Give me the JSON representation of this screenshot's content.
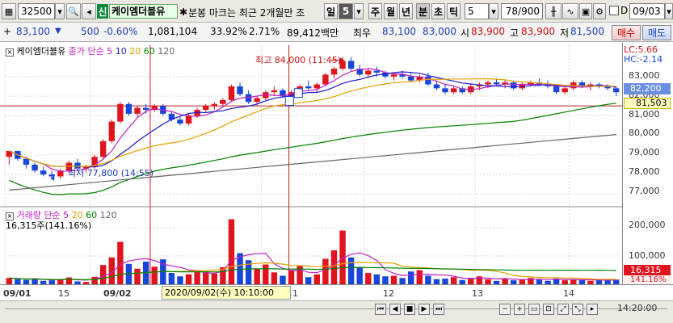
{
  "toolbar": {
    "code": "32500",
    "new_badge": "신",
    "stock_name": "케이엠더블유",
    "notice": "분봉 마크는 최근 2개월만 조",
    "timeframes": [
      "일",
      "5",
      "주",
      "월",
      "년",
      "분",
      "초",
      "틱"
    ],
    "interval_value": "5",
    "count": "78/900",
    "d_label": "D",
    "date": "09/03"
  },
  "quote": {
    "price": "83,100",
    "change": "500",
    "change_pct": "-0.60%",
    "volume": "1,081,104",
    "vol_ratio": "33.92%",
    "turnover": "2.71%",
    "amount": "89,412백만",
    "best_label": "최우",
    "best_ask": "83,100",
    "best_bid": "83,000",
    "open_label": "시",
    "open": "83,900",
    "high_label": "고",
    "high": "83,900",
    "low_label": "저",
    "low": "81,500",
    "buy_btn": "매수",
    "sell_btn": "매도"
  },
  "price_panel": {
    "name": "케이엠더블유",
    "ma_label": "종가 단순",
    "ma_periods": [
      "5",
      "10",
      "20",
      "60",
      "120"
    ],
    "lc": "LC:5.66",
    "hc": "HC:-2.14",
    "high_note": "최고 84,000 (11:45)",
    "low_note": "최저 77,800 (14:55)",
    "current_tag": "82,200",
    "ref_tag": "81,503",
    "ticks": [
      "83,000",
      "82,000",
      "81,000",
      "80,000",
      "79,000",
      "78,000",
      "77,000"
    ]
  },
  "volume_panel": {
    "label": "거래량 단순",
    "ma_periods": [
      "5",
      "20",
      "60",
      "120"
    ],
    "current": "16,315주(141.16%)",
    "current_tag": "16,315",
    "pct_tag": "141.16%",
    "ticks": [
      "200,000",
      "100,000"
    ]
  },
  "xaxis": {
    "labels": [
      "09/01",
      "15",
      "09/02",
      "11",
      "12",
      "13",
      "14"
    ],
    "crosshair_label": "2020/09/02(수) 10:10:00",
    "end_time": "14:20:00"
  },
  "colors": {
    "up": "#e0141e",
    "down": "#1746d8",
    "ma5": "#c020c0",
    "ma10": "#1a1acc",
    "ma20": "#e8a000",
    "ma60": "#008000",
    "ma120": "#666666"
  },
  "chart_data": {
    "type": "candlestick",
    "yrange": [
      76600,
      84600
    ],
    "candles": [
      [
        78900,
        79200,
        78500,
        79200
      ],
      [
        79200,
        79200,
        78700,
        78800
      ],
      [
        78800,
        78900,
        78300,
        78500
      ],
      [
        78500,
        78600,
        78100,
        78200
      ],
      [
        78200,
        78400,
        77900,
        78000
      ],
      [
        78000,
        78200,
        77800,
        77900
      ],
      [
        77900,
        78300,
        77800,
        78200
      ],
      [
        78200,
        78700,
        78100,
        78600
      ],
      [
        78600,
        78800,
        78200,
        78300
      ],
      [
        78300,
        78500,
        78100,
        78400
      ],
      [
        78400,
        79000,
        78300,
        78900
      ],
      [
        78900,
        79800,
        78800,
        79700
      ],
      [
        79700,
        80800,
        79600,
        80700
      ],
      [
        80700,
        81700,
        80600,
        81600
      ],
      [
        81600,
        81700,
        81000,
        81100
      ],
      [
        81100,
        81500,
        80900,
        81400
      ],
      [
        81400,
        81600,
        81100,
        81300
      ],
      [
        81300,
        81600,
        81200,
        81500
      ],
      [
        81500,
        81600,
        81000,
        81100
      ],
      [
        81100,
        81200,
        80700,
        80800
      ],
      [
        80800,
        81000,
        80500,
        80600
      ],
      [
        80600,
        81100,
        80500,
        81000
      ],
      [
        81000,
        81400,
        80900,
        81300
      ],
      [
        81300,
        81600,
        81200,
        81500
      ],
      [
        81500,
        81700,
        81300,
        81600
      ],
      [
        81600,
        81900,
        81500,
        81800
      ],
      [
        81800,
        82600,
        81700,
        82500
      ],
      [
        82500,
        82700,
        82000,
        82100
      ],
      [
        82100,
        82300,
        81600,
        81700
      ],
      [
        81700,
        82000,
        81500,
        81900
      ],
      [
        81900,
        82300,
        81800,
        82200
      ],
      [
        82200,
        82500,
        82000,
        82300
      ],
      [
        82300,
        82400,
        81900,
        82000
      ],
      [
        82000,
        82300,
        81900,
        82200
      ],
      [
        82200,
        82600,
        82100,
        82500
      ],
      [
        82500,
        82800,
        82300,
        82400
      ],
      [
        82400,
        82700,
        82200,
        82600
      ],
      [
        82600,
        83200,
        82500,
        83100
      ],
      [
        83100,
        83500,
        82900,
        83400
      ],
      [
        83400,
        84000,
        83300,
        83800
      ],
      [
        83800,
        84000,
        83300,
        83400
      ],
      [
        83400,
        83600,
        83000,
        83100
      ],
      [
        83100,
        83400,
        82900,
        83300
      ],
      [
        83300,
        83500,
        83000,
        83200
      ],
      [
        83200,
        83300,
        82900,
        83000
      ],
      [
        83000,
        83200,
        82800,
        83100
      ],
      [
        83100,
        83300,
        82900,
        83000
      ],
      [
        83000,
        83200,
        82700,
        82800
      ],
      [
        82800,
        83100,
        82700,
        83000
      ],
      [
        83000,
        83200,
        82500,
        82600
      ],
      [
        82600,
        82800,
        82300,
        82400
      ],
      [
        82400,
        82600,
        82100,
        82200
      ],
      [
        82200,
        82500,
        82100,
        82400
      ],
      [
        82400,
        82500,
        82100,
        82200
      ],
      [
        82200,
        82600,
        82100,
        82500
      ],
      [
        82500,
        82700,
        82300,
        82600
      ],
      [
        82600,
        82800,
        82400,
        82700
      ],
      [
        82700,
        82900,
        82500,
        82600
      ],
      [
        82600,
        82800,
        82400,
        82700
      ],
      [
        82700,
        82800,
        82300,
        82400
      ],
      [
        82400,
        82700,
        82300,
        82600
      ],
      [
        82600,
        82800,
        82500,
        82700
      ],
      [
        82700,
        82900,
        82500,
        82600
      ],
      [
        82600,
        82800,
        82400,
        82500
      ],
      [
        82500,
        82600,
        82100,
        82200
      ],
      [
        82200,
        82500,
        82100,
        82400
      ],
      [
        82400,
        82800,
        82300,
        82700
      ],
      [
        82700,
        82800,
        82400,
        82500
      ],
      [
        82500,
        82700,
        82300,
        82600
      ],
      [
        82600,
        82700,
        82400,
        82500
      ],
      [
        82500,
        82600,
        82300,
        82400
      ],
      [
        82400,
        82500,
        82000,
        82200
      ]
    ],
    "volumes": [
      22000,
      18000,
      15000,
      20000,
      12000,
      14000,
      18000,
      24000,
      10000,
      8000,
      26000,
      68000,
      95000,
      150000,
      72000,
      55000,
      80000,
      62000,
      88000,
      40000,
      28000,
      35000,
      50000,
      45000,
      38000,
      60000,
      230000,
      110000,
      85000,
      55000,
      70000,
      42000,
      30000,
      48000,
      66000,
      25000,
      35000,
      90000,
      120000,
      190000,
      95000,
      60000,
      40000,
      35000,
      28000,
      30000,
      22000,
      45000,
      50000,
      30000,
      18000,
      20000,
      25000,
      15000,
      22000,
      28000,
      18000,
      12000,
      20000,
      14000,
      18000,
      22000,
      16000,
      12000,
      20000,
      14000,
      18000,
      15000,
      12000,
      16000,
      14000,
      16315
    ],
    "vrange": [
      0,
      240000
    ]
  }
}
